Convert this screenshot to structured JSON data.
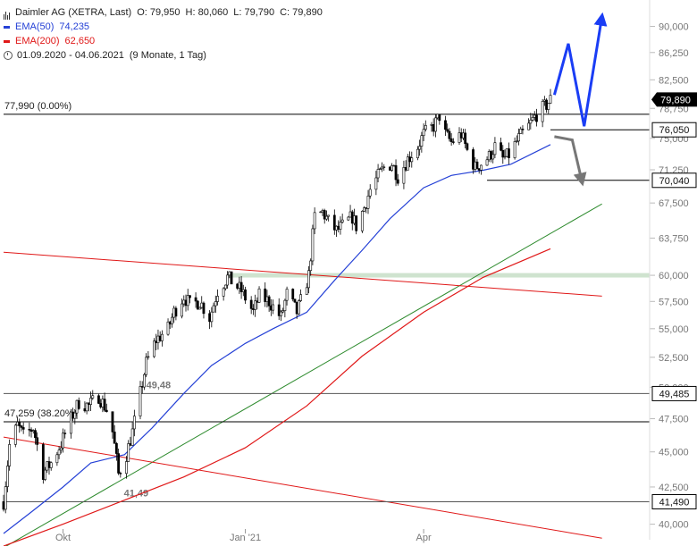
{
  "header": {
    "instrument": "Daimler AG (XETRA, Last)",
    "open": "O: 79,950",
    "high": "H: 80,060",
    "low": "L: 79,790",
    "close": "C: 79,890",
    "ema50_label": "EMA(50)",
    "ema50_value": "74,235",
    "ema200_label": "EMA(200)",
    "ema200_value": "62,650",
    "period": "01.09.2020 - 04.06.2021",
    "period_note": "(9 Monate, 1 Tag)"
  },
  "colors": {
    "ema50": "#2541d6",
    "ema200": "#e01818",
    "trend_up": "#2e8b2e",
    "trend_down": "#e01818",
    "support_zone": "#cfe3cf",
    "candle": "#000000",
    "forecast_up": "#1a3df5",
    "forecast_down": "#777777"
  },
  "chart_data": {
    "type": "candlestick",
    "y_scale": "log",
    "ylim": [
      39.0,
      93.0
    ],
    "y_ticks": [
      "40,000",
      "42,500",
      "45,000",
      "47,500",
      "50,000",
      "52,500",
      "55,000",
      "57,500",
      "60,000",
      "63,750",
      "67,500",
      "71,250",
      "75,000",
      "78,750",
      "82,500",
      "86,250",
      "90,000"
    ],
    "x_labels": [
      {
        "label": "Okt",
        "date": "2020-10-01"
      },
      {
        "label": "Jan '21",
        "date": "2021-01-01"
      },
      {
        "label": "Apr",
        "date": "2021-04-01"
      }
    ],
    "x_range": [
      "2020-09-01",
      "2021-06-04"
    ],
    "close_path": [
      [
        "2020-09-01",
        41.5
      ],
      [
        "2020-09-04",
        45.5
      ],
      [
        "2020-09-08",
        47.0
      ],
      [
        "2020-09-11",
        46.2
      ],
      [
        "2020-09-16",
        46.8
      ],
      [
        "2020-09-21",
        43.5
      ],
      [
        "2020-09-25",
        44.2
      ],
      [
        "2020-09-30",
        45.6
      ],
      [
        "2020-10-05",
        47.5
      ],
      [
        "2020-10-09",
        48.8
      ],
      [
        "2020-10-14",
        48.5
      ],
      [
        "2020-10-19",
        49.3
      ],
      [
        "2020-10-23",
        48.2
      ],
      [
        "2020-10-26",
        46.5
      ],
      [
        "2020-10-29",
        43.4
      ],
      [
        "2020-11-02",
        44.8
      ],
      [
        "2020-11-05",
        46.5
      ],
      [
        "2020-11-09",
        49.5
      ],
      [
        "2020-11-12",
        52.0
      ],
      [
        "2020-11-17",
        54.0
      ],
      [
        "2020-11-23",
        55.0
      ],
      [
        "2020-11-26",
        56.5
      ],
      [
        "2020-12-01",
        58.0
      ],
      [
        "2020-12-04",
        57.2
      ],
      [
        "2020-12-09",
        57.5
      ],
      [
        "2020-12-14",
        56.0
      ],
      [
        "2020-12-18",
        58.5
      ],
      [
        "2020-12-23",
        59.8
      ],
      [
        "2020-12-30",
        58.5
      ],
      [
        "2021-01-05",
        56.5
      ],
      [
        "2021-01-08",
        58.0
      ],
      [
        "2021-01-13",
        57.5
      ],
      [
        "2021-01-19",
        56.0
      ],
      [
        "2021-01-22",
        58.2
      ],
      [
        "2021-01-27",
        56.5
      ],
      [
        "2021-01-29",
        57.5
      ],
      [
        "2021-02-02",
        60.0
      ],
      [
        "2021-02-05",
        66.0
      ],
      [
        "2021-02-09",
        66.5
      ],
      [
        "2021-02-12",
        65.5
      ],
      [
        "2021-02-16",
        64.5
      ],
      [
        "2021-02-19",
        65.0
      ],
      [
        "2021-02-24",
        66.0
      ],
      [
        "2021-02-26",
        65.0
      ],
      [
        "2021-03-02",
        67.0
      ],
      [
        "2021-03-05",
        69.0
      ],
      [
        "2021-03-09",
        70.5
      ],
      [
        "2021-03-12",
        71.5
      ],
      [
        "2021-03-16",
        72.0
      ],
      [
        "2021-03-19",
        70.5
      ],
      [
        "2021-03-24",
        72.5
      ],
      [
        "2021-03-29",
        74.0
      ],
      [
        "2021-04-01",
        75.5
      ],
      [
        "2021-04-06",
        76.5
      ],
      [
        "2021-04-09",
        77.8
      ],
      [
        "2021-04-12",
        75.5
      ],
      [
        "2021-04-15",
        74.5
      ],
      [
        "2021-04-20",
        75.5
      ],
      [
        "2021-04-23",
        73.5
      ],
      [
        "2021-04-27",
        71.5
      ],
      [
        "2021-04-30",
        72.0
      ],
      [
        "2021-05-04",
        72.8
      ],
      [
        "2021-05-07",
        74.0
      ],
      [
        "2021-05-11",
        72.5
      ],
      [
        "2021-05-14",
        73.0
      ],
      [
        "2021-05-19",
        75.0
      ],
      [
        "2021-05-24",
        76.5
      ],
      [
        "2021-05-28",
        78.0
      ],
      [
        "2021-06-02",
        79.2
      ],
      [
        "2021-06-04",
        79.89
      ]
    ],
    "ema50_path": [
      [
        "2020-09-01",
        39.4
      ],
      [
        "2020-09-15",
        40.8
      ],
      [
        "2020-10-01",
        42.5
      ],
      [
        "2020-10-15",
        44.2
      ],
      [
        "2020-11-01",
        44.8
      ],
      [
        "2020-11-15",
        46.8
      ],
      [
        "2020-12-01",
        49.5
      ],
      [
        "2020-12-15",
        51.8
      ],
      [
        "2021-01-01",
        53.7
      ],
      [
        "2021-01-15",
        55.0
      ],
      [
        "2021-02-01",
        56.5
      ],
      [
        "2021-02-15",
        59.5
      ],
      [
        "2021-03-01",
        62.5
      ],
      [
        "2021-03-15",
        65.8
      ],
      [
        "2021-04-01",
        69.2
      ],
      [
        "2021-04-15",
        70.6
      ],
      [
        "2021-05-01",
        71.2
      ],
      [
        "2021-05-15",
        71.9
      ],
      [
        "2021-06-04",
        74.235
      ]
    ],
    "ema200_path": [
      [
        "2020-09-01",
        38.6
      ],
      [
        "2020-10-01",
        40.0
      ],
      [
        "2020-11-01",
        41.6
      ],
      [
        "2020-12-01",
        43.2
      ],
      [
        "2021-01-01",
        45.3
      ],
      [
        "2021-02-01",
        48.5
      ],
      [
        "2021-03-01",
        52.6
      ],
      [
        "2021-04-01",
        56.5
      ],
      [
        "2021-05-01",
        59.8
      ],
      [
        "2021-06-04",
        62.65
      ]
    ],
    "trendlines": [
      {
        "name": "uptrend",
        "color": "#2e8b2e",
        "from": [
          "2020-09-01",
          38.5
        ],
        "to": [
          "2021-06-30",
          67.4
        ]
      },
      {
        "name": "downtrend-upper",
        "color": "#e01818",
        "from": [
          "2020-09-01",
          62.3
        ],
        "to": [
          "2021-06-30",
          58.0
        ]
      },
      {
        "name": "downtrend-lower",
        "color": "#e01818",
        "from": [
          "2020-09-01",
          46.1
        ],
        "to": [
          "2021-06-30",
          39.1
        ]
      }
    ],
    "support_zone": {
      "from": "2020-12-23",
      "value": 60.0
    },
    "horizontal_levels": [
      {
        "value": 77.99,
        "label": "77,990 (0.00%)",
        "tag": "",
        "label_color": "#222222",
        "start": "2020-09-01",
        "line_color": "#000000"
      },
      {
        "value": 76.05,
        "label": "",
        "tag": "76,050",
        "label_color": "#222222",
        "start": "2021-06-04",
        "line_color": "#000000"
      },
      {
        "value": 70.04,
        "label": "",
        "tag": "70,040",
        "label_color": "#222222",
        "start": "2021-05-03",
        "line_color": "#000000"
      },
      {
        "value": 49.485,
        "label": "49,48",
        "tag": "49,485",
        "label_color": "#777777",
        "start": "2020-09-01",
        "line_color": "#555555"
      },
      {
        "value": 47.259,
        "label": "47,259 (38.20%)",
        "tag": "",
        "label_color": "#222222",
        "start": "2020-09-01",
        "line_color": "#000000"
      },
      {
        "value": 41.49,
        "label": "41,49",
        "tag": "41,490",
        "label_color": "#777777",
        "start": "2020-09-01",
        "line_color": "#555555"
      }
    ],
    "last_price": {
      "value": 79.89,
      "tag": "79,890"
    },
    "forecast_up": [
      [
        "2021-06-06",
        80.5
      ],
      [
        "2021-06-13",
        87.5
      ],
      [
        "2021-06-21",
        76.5
      ],
      [
        "2021-06-30",
        91.5
      ]
    ],
    "forecast_down": [
      [
        "2021-06-06",
        75.2
      ],
      [
        "2021-06-15",
        74.8
      ],
      [
        "2021-06-20",
        69.8
      ]
    ]
  }
}
